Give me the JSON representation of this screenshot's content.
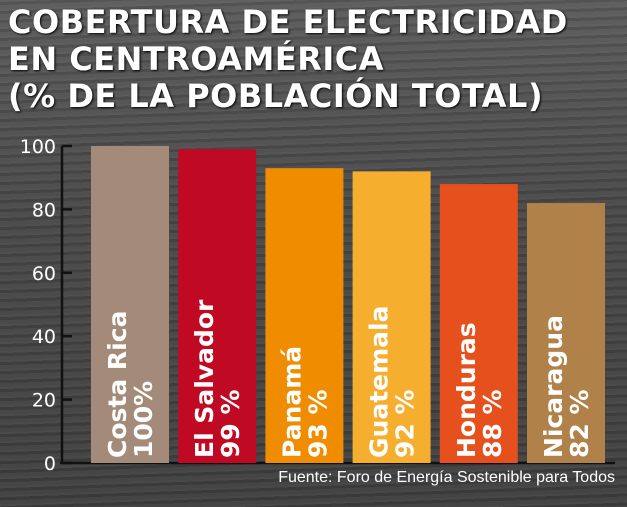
{
  "chart_data": {
    "type": "bar",
    "title_lines": [
      "COBERTURA DE ELECTRICIDAD",
      "EN CENTROAMÉRICA",
      "(% DE LA POBLACIÓN TOTAL)"
    ],
    "categories": [
      "Costa Rica",
      "El Salvador",
      "Panamá",
      "Guatemala",
      "Honduras",
      "Nicaragua"
    ],
    "values": [
      100,
      99,
      93,
      92,
      88,
      82
    ],
    "value_labels": [
      "100%",
      "99 %",
      "93 %",
      "92 %",
      "88 %",
      "82 %"
    ],
    "colors": [
      "#a48a78",
      "#c00a23",
      "#f08c00",
      "#f5ae2e",
      "#e5501c",
      "#b08148"
    ],
    "yticks": [
      "0",
      "20",
      "40",
      "60",
      "80",
      "100"
    ],
    "ylim": [
      0,
      100
    ],
    "grid": false,
    "source": "Fuente: Foro de Energía Sostenible para Todos"
  }
}
